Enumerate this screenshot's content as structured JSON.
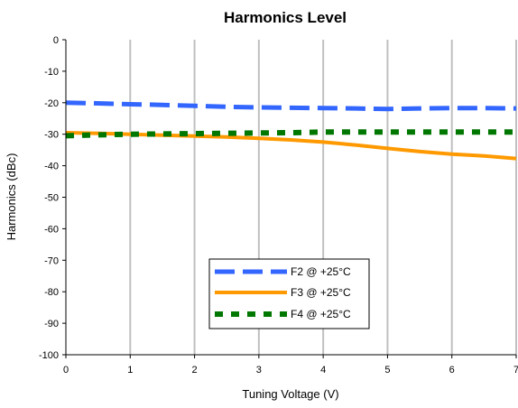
{
  "chart_data": {
    "type": "line",
    "title": "Harmonics Level",
    "xlabel": "Tuning Voltage (V)",
    "ylabel": "Harmonics (dBc)",
    "xlim": [
      0,
      7
    ],
    "ylim": [
      -100,
      0
    ],
    "x_ticks": [
      "0",
      "1",
      "2",
      "3",
      "4",
      "5",
      "6",
      "7"
    ],
    "y_ticks": [
      "0",
      "-10",
      "-20",
      "-30",
      "-40",
      "-50",
      "-60",
      "-70",
      "-80",
      "-90",
      "-100"
    ],
    "grid": {
      "vertical": true,
      "horizontal": false
    },
    "legend_position": "center-bottom",
    "series": [
      {
        "name": "F2 @ +25°C",
        "color": "#3366ff",
        "style": "dashed",
        "x": [
          0,
          0.5,
          1,
          1.5,
          2,
          2.5,
          3,
          3.5,
          4,
          4.5,
          5,
          5.5,
          6,
          6.5,
          7
        ],
        "y": [
          -20,
          -20.2,
          -20.5,
          -20.7,
          -21,
          -21.3,
          -21.5,
          -21.6,
          -21.7,
          -21.8,
          -22,
          -21.8,
          -21.7,
          -21.7,
          -21.8
        ]
      },
      {
        "name": "F3 @ +25°C",
        "color": "#ff9900",
        "style": "solid",
        "x": [
          0,
          0.5,
          1,
          1.5,
          2,
          2.5,
          3,
          3.5,
          4,
          4.5,
          5,
          5.5,
          6,
          6.5,
          7
        ],
        "y": [
          -29.5,
          -29.7,
          -30,
          -30.3,
          -30.6,
          -30.9,
          -31.3,
          -31.8,
          -32.5,
          -33.4,
          -34.5,
          -35.5,
          -36.3,
          -36.9,
          -37.7
        ]
      },
      {
        "name": "F4 @ +25°C",
        "color": "#007700",
        "style": "dotted",
        "x": [
          0,
          0.5,
          1,
          1.5,
          2,
          2.5,
          3,
          3.5,
          4,
          4.5,
          5,
          5.5,
          6,
          6.5,
          7
        ],
        "y": [
          -30.5,
          -30.2,
          -30,
          -29.9,
          -29.8,
          -29.7,
          -29.6,
          -29.5,
          -29.3,
          -29.3,
          -29.3,
          -29.3,
          -29.3,
          -29.3,
          -29.3
        ]
      }
    ]
  }
}
